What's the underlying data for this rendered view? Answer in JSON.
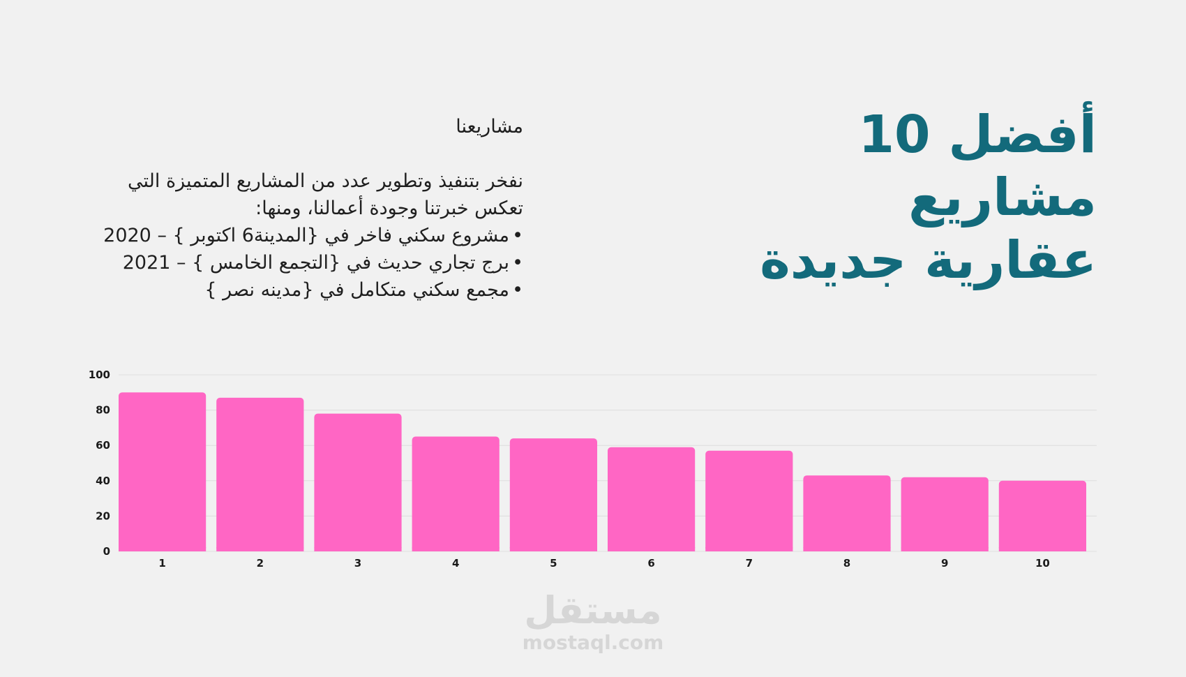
{
  "title": {
    "line1": "أفضل 10",
    "line2": "مشاريع",
    "line3": "عقارية جديدة"
  },
  "description": {
    "heading": "مشاريعنا",
    "intro": "نفخر بتنفيذ وتطوير عدد من المشاريع المتميزة التي تعكس خبرتنا وجودة أعمالنا، ومنها:",
    "items": [
      "مشروع سكني فاخر في {المدينة6 اكتوبر } – 2020",
      "برج تجاري حديث في {التجمع الخامس } – 2021",
      "مجمع سكني متكامل في {مدينه نصر }"
    ]
  },
  "watermark": {
    "arabic": "مستقل",
    "latin": "mostaql.com"
  },
  "colors": {
    "background": "#f1f1f1",
    "title": "#136a7b",
    "bar": "#ff66c4",
    "grid": "#dedede",
    "watermark": "#d6d6d6"
  },
  "chart_data": {
    "type": "bar",
    "categories": [
      "1",
      "2",
      "3",
      "4",
      "5",
      "6",
      "7",
      "8",
      "9",
      "10"
    ],
    "values": [
      90,
      87,
      78,
      65,
      64,
      59,
      57,
      43,
      42,
      40
    ],
    "yticks": [
      0,
      20,
      40,
      60,
      80,
      100
    ],
    "ylim": [
      0,
      100
    ],
    "grid": true,
    "title": "",
    "xlabel": "",
    "ylabel": ""
  }
}
